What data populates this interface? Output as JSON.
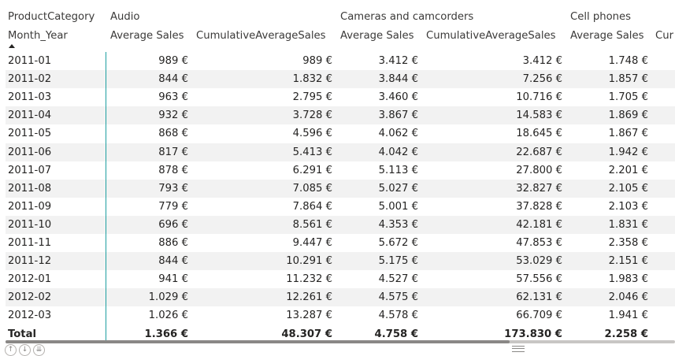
{
  "header": {
    "row_label_field": "ProductCategory",
    "column_label_field": "Month_Year",
    "categories": [
      "Audio",
      "Cameras and camcorders",
      "Cell phones"
    ],
    "measures": [
      "Average Sales",
      "CumulativeAverageSales",
      "Average Sales",
      "CumulativeAverageSales",
      "Average Sales",
      "Cur"
    ]
  },
  "rows": [
    {
      "month": "2011-01",
      "values": [
        "989 €",
        "989 €",
        "3.412 €",
        "3.412 €",
        "1.748 €"
      ]
    },
    {
      "month": "2011-02",
      "values": [
        "844 €",
        "1.832 €",
        "3.844 €",
        "7.256 €",
        "1.857 €"
      ]
    },
    {
      "month": "2011-03",
      "values": [
        "963 €",
        "2.795 €",
        "3.460 €",
        "10.716 €",
        "1.705 €"
      ]
    },
    {
      "month": "2011-04",
      "values": [
        "932 €",
        "3.728 €",
        "3.867 €",
        "14.583 €",
        "1.869 €"
      ]
    },
    {
      "month": "2011-05",
      "values": [
        "868 €",
        "4.596 €",
        "4.062 €",
        "18.645 €",
        "1.867 €"
      ]
    },
    {
      "month": "2011-06",
      "values": [
        "817 €",
        "5.413 €",
        "4.042 €",
        "22.687 €",
        "1.942 €"
      ]
    },
    {
      "month": "2011-07",
      "values": [
        "878 €",
        "6.291 €",
        "5.113 €",
        "27.800 €",
        "2.201 €"
      ]
    },
    {
      "month": "2011-08",
      "values": [
        "793 €",
        "7.085 €",
        "5.027 €",
        "32.827 €",
        "2.105 €"
      ]
    },
    {
      "month": "2011-09",
      "values": [
        "779 €",
        "7.864 €",
        "5.001 €",
        "37.828 €",
        "2.103 €"
      ]
    },
    {
      "month": "2011-10",
      "values": [
        "696 €",
        "8.561 €",
        "4.353 €",
        "42.181 €",
        "1.831 €"
      ]
    },
    {
      "month": "2011-11",
      "values": [
        "886 €",
        "9.447 €",
        "5.672 €",
        "47.853 €",
        "2.358 €"
      ]
    },
    {
      "month": "2011-12",
      "values": [
        "844 €",
        "10.291 €",
        "5.175 €",
        "53.029 €",
        "2.151 €"
      ]
    },
    {
      "month": "2012-01",
      "values": [
        "941 €",
        "11.232 €",
        "4.527 €",
        "57.556 €",
        "1.983 €"
      ]
    },
    {
      "month": "2012-02",
      "values": [
        "1.029 €",
        "12.261 €",
        "4.575 €",
        "62.131 €",
        "2.046 €"
      ]
    },
    {
      "month": "2012-03",
      "values": [
        "1.026 €",
        "13.287 €",
        "4.578 €",
        "66.709 €",
        "1.941 €"
      ]
    }
  ],
  "total": {
    "label": "Total",
    "values": [
      "1.366 €",
      "48.307 €",
      "4.758 €",
      "173.830 €",
      "2.258 €"
    ]
  },
  "icons": {
    "sort": "sort-ascending-icon",
    "scroll_left": "arrow-up-icon",
    "drill_down": "drill-down-icon",
    "expand": "expand-icon",
    "grip": "grip-icon"
  }
}
